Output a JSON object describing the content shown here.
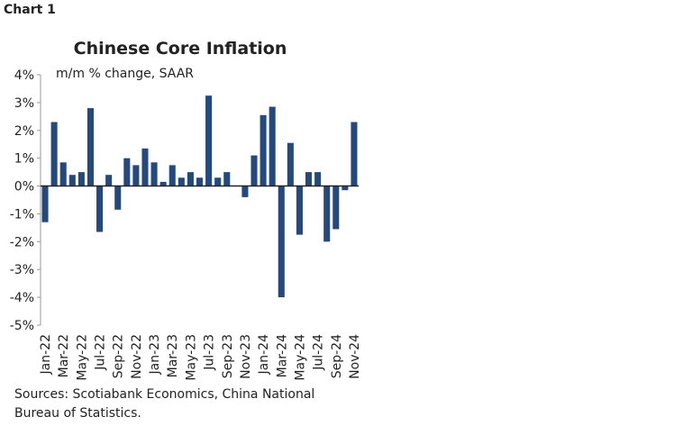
{
  "chart_data": {
    "type": "bar",
    "label": "Chart 1",
    "title": "Chinese Core Inflation",
    "subtitle": "m/m % change, SAAR",
    "source": "Sources: Scotiabank Economics, China National Bureau of Statistics.",
    "categories": [
      "Jan-22",
      null,
      "Mar-22",
      null,
      "May-22",
      null,
      "Jul-22",
      null,
      "Sep-22",
      null,
      "Nov-22",
      null,
      "Jan-23",
      null,
      "Mar-23",
      null,
      "May-23",
      null,
      "Jul-23",
      null,
      "Sep-23",
      null,
      "Nov-23",
      null,
      "Jan-24",
      null,
      "Mar-24",
      null,
      "May-24",
      null,
      "Jul-24",
      null,
      "Sep-24",
      null,
      "Nov-24"
    ],
    "values": [
      -1.3,
      2.3,
      0.85,
      0.4,
      0.5,
      2.8,
      -1.65,
      0.4,
      -0.85,
      1.0,
      0.75,
      1.35,
      0.85,
      0.15,
      0.75,
      0.3,
      0.5,
      0.3,
      3.25,
      0.3,
      0.5,
      0,
      -0.4,
      1.1,
      2.55,
      2.85,
      -4.0,
      1.55,
      -1.75,
      0.5,
      0.5,
      -2.0,
      -1.55,
      -0.15,
      2.3
    ],
    "color": "#24497f",
    "ylim": [
      -5,
      4
    ],
    "yticks": [
      {
        "value": 4,
        "label": "4%"
      },
      {
        "value": 3,
        "label": "3%"
      },
      {
        "value": 2,
        "label": "2%"
      },
      {
        "value": 1,
        "label": "1%"
      },
      {
        "value": 0,
        "label": "0%"
      },
      {
        "value": -1,
        "label": "-1%"
      },
      {
        "value": -2,
        "label": "-2%"
      },
      {
        "value": -3,
        "label": "-3%"
      },
      {
        "value": -4,
        "label": "-4%"
      },
      {
        "value": -5,
        "label": "-5%"
      }
    ],
    "grid": false
  }
}
